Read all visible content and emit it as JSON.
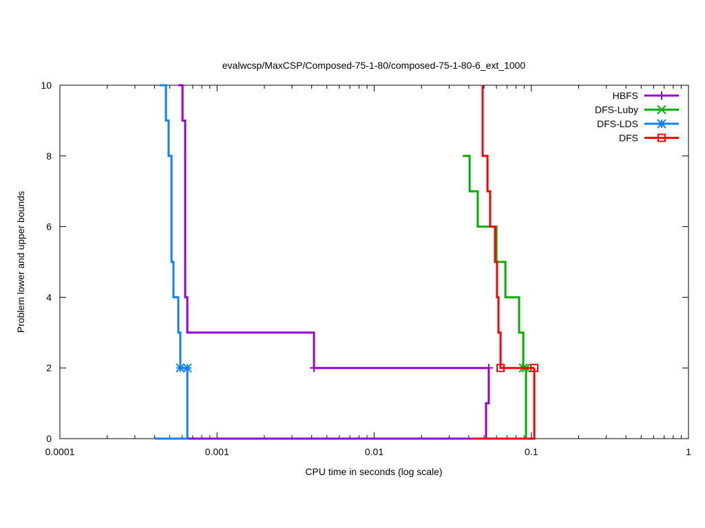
{
  "chart_data": {
    "type": "line",
    "title": "evalwcsp/MaxCSP/Composed-75-1-80/composed-75-1-80-6_ext_1000",
    "xlabel": "CPU time in seconds (log scale)",
    "ylabel": "Problem lower and upper bounds",
    "xscale": "log",
    "xlim": [
      0.0001,
      1
    ],
    "ylim": [
      0,
      10
    ],
    "xticks": [
      {
        "v": 0.0001,
        "label": "0.0001"
      },
      {
        "v": 0.001,
        "label": "0.001"
      },
      {
        "v": 0.01,
        "label": "0.01"
      },
      {
        "v": 0.1,
        "label": "0.1"
      },
      {
        "v": 1,
        "label": "1"
      }
    ],
    "yticks": [
      {
        "v": 0,
        "label": "0"
      },
      {
        "v": 2,
        "label": "2"
      },
      {
        "v": 4,
        "label": "4"
      },
      {
        "v": 6,
        "label": "6"
      },
      {
        "v": 8,
        "label": "8"
      },
      {
        "v": 10,
        "label": "10"
      }
    ],
    "legend_position": "top-right",
    "series": [
      {
        "name": "HBFS",
        "color": "#9400d3",
        "marker": "plus",
        "upper": [
          [
            0.000567,
            10
          ],
          [
            0.000603,
            10
          ],
          [
            0.000603,
            9
          ],
          [
            0.000627,
            9
          ],
          [
            0.000627,
            4
          ],
          [
            0.000647,
            4
          ],
          [
            0.000647,
            3
          ],
          [
            0.00414,
            3
          ],
          [
            0.00414,
            2
          ],
          [
            0.0536,
            2
          ]
        ],
        "lower": [
          [
            0.00053,
            0
          ],
          [
            0.0515,
            0
          ],
          [
            0.0515,
            1
          ],
          [
            0.0536,
            1
          ],
          [
            0.0536,
            2
          ]
        ],
        "markers": [
          [
            0.00414,
            2
          ],
          [
            0.0536,
            2
          ]
        ]
      },
      {
        "name": "DFS-Luby",
        "color": "#00b000",
        "marker": "cross",
        "upper": [
          [
            0.0366,
            8
          ],
          [
            0.0405,
            8
          ],
          [
            0.0405,
            7
          ],
          [
            0.0456,
            7
          ],
          [
            0.0456,
            6
          ],
          [
            0.06,
            6
          ],
          [
            0.06,
            5
          ],
          [
            0.0684,
            5
          ],
          [
            0.0684,
            4
          ],
          [
            0.0836,
            4
          ],
          [
            0.0836,
            3
          ],
          [
            0.0889,
            3
          ],
          [
            0.0889,
            2
          ],
          [
            0.0925,
            2
          ]
        ],
        "lower": [
          [
            0.0426,
            0
          ],
          [
            0.0925,
            0
          ],
          [
            0.0925,
            2
          ]
        ],
        "markers": [
          [
            0.0889,
            2
          ],
          [
            0.0925,
            2
          ]
        ]
      },
      {
        "name": "DFS-LDS",
        "color": "#0a80ff",
        "marker": "star",
        "upper": [
          [
            0.000431,
            10
          ],
          [
            0.000473,
            10
          ],
          [
            0.000473,
            9
          ],
          [
            0.000492,
            9
          ],
          [
            0.000492,
            8
          ],
          [
            0.000513,
            8
          ],
          [
            0.000513,
            5
          ],
          [
            0.000528,
            5
          ],
          [
            0.000528,
            4
          ],
          [
            0.000567,
            4
          ],
          [
            0.000567,
            3
          ],
          [
            0.000584,
            3
          ],
          [
            0.000584,
            2
          ],
          [
            0.000647,
            2
          ]
        ],
        "lower": [
          [
            0.000402,
            0
          ],
          [
            0.000647,
            0
          ],
          [
            0.000647,
            2
          ]
        ],
        "markers": [
          [
            0.000584,
            2
          ],
          [
            0.000647,
            2
          ]
        ]
      },
      {
        "name": "DFS",
        "color": "#ff0000",
        "marker": "square",
        "upper": [
          [
            0.049,
            10
          ],
          [
            0.049,
            8
          ],
          [
            0.0526,
            8
          ],
          [
            0.0526,
            7
          ],
          [
            0.0547,
            7
          ],
          [
            0.0547,
            6
          ],
          [
            0.0587,
            6
          ],
          [
            0.0587,
            5
          ],
          [
            0.0605,
            5
          ],
          [
            0.0605,
            4
          ],
          [
            0.0618,
            4
          ],
          [
            0.0618,
            3
          ],
          [
            0.0637,
            3
          ],
          [
            0.0637,
            2
          ],
          [
            0.1045,
            2
          ]
        ],
        "lower": [
          [
            0.0426,
            0
          ],
          [
            0.1045,
            0
          ],
          [
            0.1045,
            2
          ]
        ],
        "markers": [
          [
            0.0637,
            2
          ],
          [
            0.1045,
            2
          ]
        ]
      }
    ]
  }
}
